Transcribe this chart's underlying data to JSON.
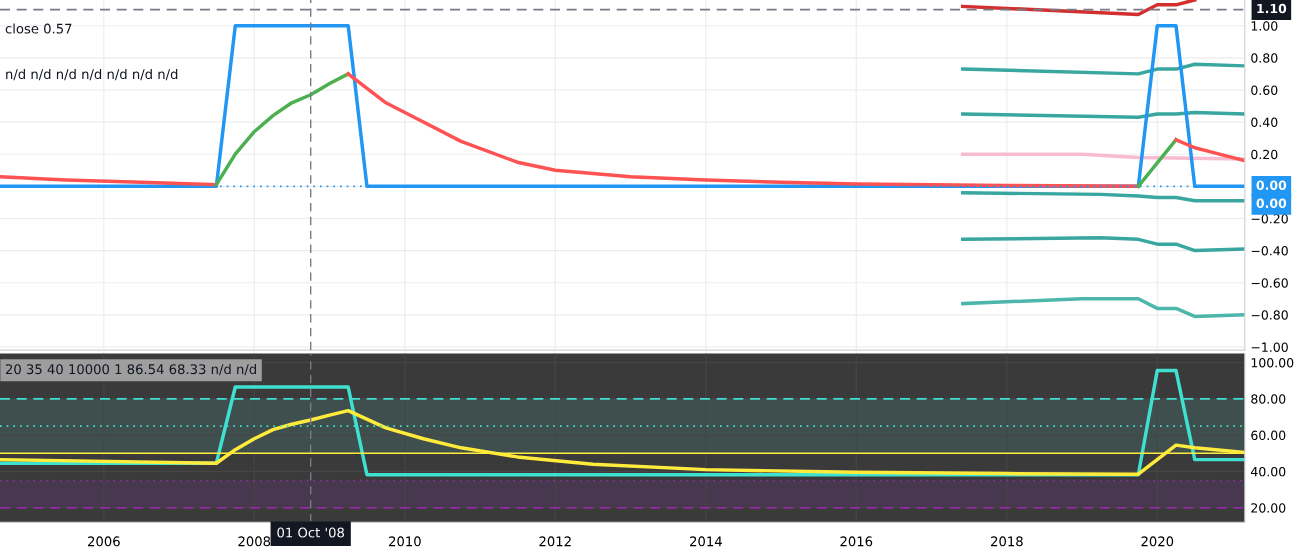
{
  "chart_data": [
    {
      "type": "line",
      "xlim": [
        "2004-08-15",
        "2021-03-01"
      ],
      "ylim": [
        -1.02,
        1.16
      ],
      "xticks": [
        {
          "value": "2006-01-01",
          "label": null
        },
        {
          "value": "2008-01-01",
          "label": null
        },
        {
          "value": "2010-01-01",
          "label": null
        },
        {
          "value": "2012-01-01",
          "label": null
        },
        {
          "value": "2014-01-01",
          "label": null
        },
        {
          "value": "2016-01-01",
          "label": null
        },
        {
          "value": "2018-01-01",
          "label": null
        },
        {
          "value": "2020-01-01",
          "label": null
        }
      ],
      "yticks": [
        {
          "value": -1,
          "label": "−1.00"
        },
        {
          "value": -0.8,
          "label": "−0.80"
        },
        {
          "value": -0.6,
          "label": "−0.60"
        },
        {
          "value": -0.4,
          "label": "−0.40"
        },
        {
          "value": -0.2,
          "label": "−0.20"
        },
        {
          "value": 0,
          "label": null
        },
        {
          "value": 0.2,
          "label": "0.20"
        },
        {
          "value": 0.4,
          "label": "0.40"
        },
        {
          "value": 0.6,
          "label": "0.60"
        },
        {
          "value": 0.8,
          "label": "0.80"
        },
        {
          "value": 1,
          "label": "1.00"
        }
      ],
      "tick_labels": "y",
      "grid": true,
      "legend": false,
      "marker": "none",
      "line_style": "solid",
      "annotations": [
        "close 0.57",
        "n/d n/d n/d n/d n/d n/d n/d"
      ],
      "ref_lines": [
        {
          "axis": "x",
          "value": "2008-10-01",
          "color": "#787b86",
          "line_style": "dashed"
        },
        {
          "axis": "y",
          "value": 1.1,
          "label": "1.10",
          "color": "#787b86",
          "line_style": "dashed"
        },
        {
          "axis": "y",
          "value": 0,
          "label": "0.00",
          "color": "#2196f3",
          "line_style": "dotted"
        }
      ],
      "series": [
        {
          "color": "#f8bbd0",
          "x": [
            "2017-06",
            "2019-01",
            "2019-10",
            "2021-03"
          ],
          "values": [
            0.2,
            0.2,
            0.18,
            0.17
          ]
        },
        {
          "color": "#3aa6a0",
          "x": [
            "2017-06",
            "2019-10",
            "2020-01",
            "2020-04",
            "2020-07",
            "2021-03"
          ],
          "values": [
            0.73,
            0.7,
            0.73,
            0.73,
            0.76,
            0.75
          ]
        },
        {
          "color": "#3aa6a0",
          "x": [
            "2017-06",
            "2019-10",
            "2020-01",
            "2020-04",
            "2020-07",
            "2021-03"
          ],
          "values": [
            0.45,
            0.43,
            0.45,
            0.45,
            0.46,
            0.45
          ]
        },
        {
          "color": "#3aa6a0",
          "x": [
            "2017-06",
            "2019-04",
            "2019-10",
            "2020-01",
            "2020-04",
            "2020-07",
            "2021-03"
          ],
          "values": [
            -0.04,
            -0.05,
            -0.06,
            -0.07,
            -0.07,
            -0.09,
            -0.09
          ]
        },
        {
          "color": "#3aa6a0",
          "x": [
            "2017-06",
            "2019-04",
            "2019-10",
            "2020-01",
            "2020-04",
            "2020-07",
            "2021-03"
          ],
          "values": [
            -0.33,
            -0.32,
            -0.33,
            -0.36,
            -0.36,
            -0.4,
            -0.39
          ]
        },
        {
          "color": "#4db6ac",
          "x": [
            "2017-06",
            "2019-01",
            "2019-10",
            "2020-01",
            "2020-04",
            "2020-07",
            "2021-03"
          ],
          "values": [
            -0.73,
            -0.7,
            -0.7,
            -0.76,
            -0.76,
            -0.81,
            -0.8
          ]
        },
        {
          "color": "#d32f2f",
          "x": [
            "2017-06",
            "2019-10",
            "2020-01",
            "2020-04",
            "2020-07"
          ],
          "values": [
            1.12,
            1.07,
            1.13,
            1.13,
            1.16
          ]
        },
        {
          "color": "#2196f3",
          "x": [
            "2004-08-15",
            "2007-07",
            "2007-10",
            "2009-04",
            "2009-07",
            "2019-10",
            "2020-01",
            "2020-04",
            "2020-07",
            "2021-03"
          ],
          "values": [
            0,
            0,
            1,
            1,
            0,
            0,
            1,
            1,
            0,
            0
          ],
          "value_labels": [
            null,
            null,
            null,
            null,
            null,
            null,
            null,
            null,
            null,
            "0.00"
          ]
        },
        {
          "color": "#ff5252",
          "x": [
            "2004-08-15",
            "2005-07",
            "2006-07",
            "2007-07"
          ],
          "values": [
            0.06,
            0.04,
            0.025,
            0.01
          ]
        },
        {
          "color": "#4caf50",
          "x": [
            "2007-07",
            "2007-10",
            "2008-01",
            "2008-04",
            "2008-07",
            "2008-10",
            "2009-01",
            "2009-04"
          ],
          "values": [
            0.01,
            0.2,
            0.34,
            0.44,
            0.52,
            0.57,
            0.64,
            0.7
          ]
        },
        {
          "color": "#ff5252",
          "x": [
            "2009-04",
            "2009-10",
            "2010-04",
            "2010-10",
            "2011-07",
            "2012-01",
            "2013-01",
            "2014-01",
            "2015-01",
            "2016-01",
            "2017-01",
            "2018-01",
            "2019-10"
          ],
          "values": [
            0.7,
            0.52,
            0.4,
            0.28,
            0.15,
            0.1,
            0.06,
            0.04,
            0.025,
            0.015,
            0.01,
            0.005,
            0.0
          ]
        },
        {
          "color": "#4caf50",
          "x": [
            "2019-10",
            "2020-04"
          ],
          "values": [
            0.0,
            0.29
          ]
        },
        {
          "color": "#ff5252",
          "x": [
            "2020-04",
            "2020-07",
            "2020-10",
            "2021-03"
          ],
          "values": [
            0.29,
            0.24,
            0.21,
            0.16
          ]
        }
      ]
    },
    {
      "type": "line",
      "xlim": [
        "2004-08-15",
        "2021-03-01"
      ],
      "ylim": [
        12,
        105
      ],
      "xticks": [
        {
          "value": "2006-01-01",
          "label": "2006"
        },
        {
          "value": "2008-01-01",
          "label": "2008"
        },
        {
          "value": "2010-01-01",
          "label": "2010"
        },
        {
          "value": "2012-01-01",
          "label": "2012"
        },
        {
          "value": "2014-01-01",
          "label": "2014"
        },
        {
          "value": "2016-01-01",
          "label": "2016"
        },
        {
          "value": "2018-01-01",
          "label": "2018"
        },
        {
          "value": "2020-01-01",
          "label": "2020"
        }
      ],
      "yticks": [
        {
          "value": 20,
          "label": "20.00"
        },
        {
          "value": 40,
          "label": "40.00"
        },
        {
          "value": 60,
          "label": "60.00"
        },
        {
          "value": 80,
          "label": "80.00"
        },
        {
          "value": 100,
          "label": "100.00"
        }
      ],
      "grid": true,
      "legend": false,
      "marker": "none",
      "line_style": "solid",
      "annotations": [
        "20 35 40 10000 1 86.54 68.33 n/d n/d"
      ],
      "bands": [
        {
          "axis": "y",
          "from": 50,
          "to": 80,
          "color": "#3f4f4e"
        },
        {
          "axis": "y",
          "from": 20,
          "to": 35,
          "color": "#47384f"
        }
      ],
      "ref_lines": [
        {
          "axis": "x",
          "value": "2008-10-01",
          "label": "01 Oct '08",
          "color": "#787b86",
          "line_style": "dashed"
        },
        {
          "axis": "y",
          "value": 80,
          "color": "#40e0d0",
          "line_style": "dashed"
        },
        {
          "axis": "y",
          "value": 65,
          "color": "#40e0d0",
          "line_style": "dotted"
        },
        {
          "axis": "y",
          "value": 50,
          "color": "#ffeb3b",
          "line_style": "solid"
        },
        {
          "axis": "y",
          "value": 35,
          "color": "#9c27b0",
          "line_style": "dotted"
        },
        {
          "axis": "y",
          "value": 20,
          "color": "#9c27b0",
          "line_style": "dashed"
        }
      ],
      "series": [
        {
          "color": "#40e0d0",
          "x": [
            "2004-08-15",
            "2007-07",
            "2007-10",
            "2009-04",
            "2009-07",
            "2019-10",
            "2020-01",
            "2020-04",
            "2020-07",
            "2021-03"
          ],
          "values": [
            44.5,
            44.5,
            86.5,
            86.5,
            38.2,
            38.2,
            95.6,
            95.6,
            46.5,
            46.5
          ]
        },
        {
          "color": "#ffeb3b",
          "x": [
            "2004-08-15",
            "2007-07",
            "2007-10",
            "2008-01",
            "2008-04",
            "2008-07",
            "2008-10",
            "2009-01",
            "2009-04",
            "2009-10",
            "2010-04",
            "2010-10",
            "2011-07",
            "2012-07",
            "2014-01",
            "2016-01",
            "2018-01",
            "2019-10",
            "2020-04",
            "2020-07",
            "2021-03"
          ],
          "values": [
            46.5,
            44.5,
            52,
            58,
            63,
            66,
            68.33,
            71,
            73.5,
            64,
            58,
            53,
            48,
            44,
            41,
            39.5,
            38.8,
            38.5,
            54.5,
            53,
            50.5
          ]
        }
      ]
    }
  ]
}
